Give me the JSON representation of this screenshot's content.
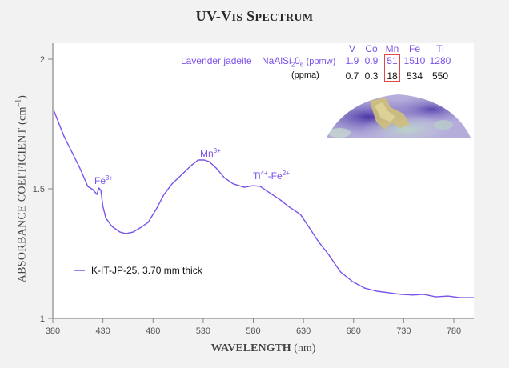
{
  "chart_data": {
    "type": "line",
    "title": "UV-Vis Spectrum",
    "xlabel": "WAVELENGTH (nm)",
    "ylabel": "ABSORBANCE COEFFICIENT (cm⁻¹)",
    "xlim": [
      380,
      800
    ],
    "ylim": [
      1,
      2.06
    ],
    "x_ticks": [
      380,
      430,
      480,
      530,
      580,
      630,
      680,
      730,
      780
    ],
    "y_ticks": [
      1,
      1.5,
      2
    ],
    "grid": false,
    "legend_position": "lower-left",
    "series": [
      {
        "name": "K-IT-JP-25, 3.70 mm thick",
        "color": "#7b52e8",
        "x": [
          381,
          391,
          399,
          407,
          415,
          420,
          424,
          426,
          428,
          430,
          433,
          439,
          447,
          453,
          460,
          467,
          475,
          483,
          491,
          499,
          509,
          519,
          525,
          531,
          536,
          543,
          551,
          560,
          571,
          580,
          587,
          595,
          607,
          615,
          627,
          635,
          645,
          655,
          667,
          679,
          691,
          703,
          715,
          727,
          739,
          750,
          762,
          774,
          786,
          800
        ],
        "y": [
          1.802,
          1.704,
          1.642,
          1.58,
          1.509,
          1.497,
          1.478,
          1.503,
          1.494,
          1.432,
          1.386,
          1.355,
          1.333,
          1.327,
          1.333,
          1.349,
          1.37,
          1.42,
          1.478,
          1.519,
          1.556,
          1.593,
          1.611,
          1.611,
          1.605,
          1.58,
          1.543,
          1.519,
          1.506,
          1.512,
          1.509,
          1.488,
          1.457,
          1.432,
          1.401,
          1.355,
          1.296,
          1.247,
          1.179,
          1.142,
          1.117,
          1.105,
          1.099,
          1.093,
          1.09,
          1.093,
          1.083,
          1.086,
          1.08,
          1.08
        ]
      }
    ],
    "annotations": [
      {
        "label": "Fe3+",
        "x": 426,
        "y": 1.52
      },
      {
        "label": "Mn3+",
        "x": 530,
        "y": 1.63
      },
      {
        "label": "Ti4+-Fe2+",
        "x": 590,
        "y": 1.53
      }
    ],
    "composition_table": {
      "sample": "Lavender jadeite",
      "formula": "NaAlSi2O6",
      "elements": [
        "V",
        "Co",
        "Mn",
        "Fe",
        "Ti"
      ],
      "ppmw": [
        "1.9",
        "0.9",
        "51",
        "1510",
        "1280"
      ],
      "ppma": [
        "0.7",
        "0.3",
        "18",
        "534",
        "550"
      ],
      "highlighted": "Mn"
    }
  },
  "title": {
    "main_first": "UV-V",
    "main_small": "IS",
    "main_s2": " S",
    "main_small2": "PECTRUM"
  },
  "axes": {
    "y_label": "ABSORBANCE COEFFICIENT (cm",
    "y_label_sup": "–1",
    "y_label_end": ")",
    "x_label": "WAVELENGTH",
    "x_unit": " (nm)"
  },
  "annotations": {
    "fe": {
      "base": "Fe",
      "sup": "3+"
    },
    "mn": {
      "base": "Mn",
      "sup": "3+"
    },
    "tife": {
      "base1": "Ti",
      "sup1": "4+",
      "mid": "-Fe",
      "sup2": "2+"
    }
  },
  "info": {
    "sample": "Lavender jadeite",
    "formula_a": "NaAlSi",
    "formula_sub1": "2",
    "formula_b": "0",
    "formula_sub2": "6",
    "unit_w": "(ppmw)",
    "unit_a": "(ppma)",
    "elements": [
      "V",
      "Co",
      "Mn",
      "Fe",
      "Ti"
    ],
    "ppmw": [
      "1.9",
      "0.9",
      "51",
      "1510",
      "1280"
    ],
    "ppma": [
      "0.7",
      "0.3",
      "18",
      "534",
      "550"
    ]
  },
  "legend": {
    "label": "K-IT-JP-25, 3.70 mm thick"
  },
  "colors": {
    "series": "#7b52e8",
    "highlight_box": "#e04848"
  }
}
